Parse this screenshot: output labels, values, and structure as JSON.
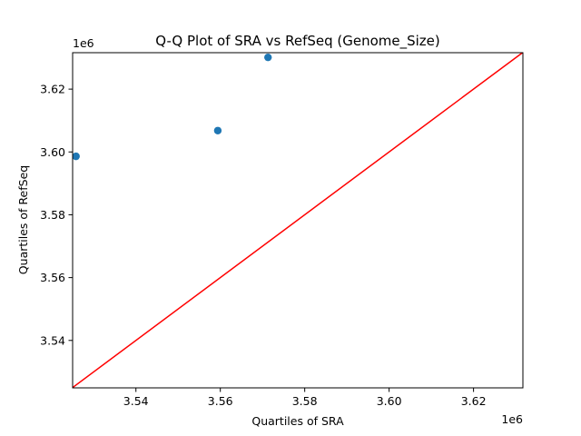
{
  "chart_data": {
    "type": "scatter",
    "title": "Q-Q Plot of SRA vs RefSeq (Genome_Size)",
    "xlabel": "Quartiles of SRA",
    "ylabel": "Quartiles of RefSeq",
    "x_offset_label": "1e6",
    "y_offset_label": "1e6",
    "xlim": [
      3525000,
      3631700
    ],
    "ylim": [
      3524900,
      3631600
    ],
    "x_ticks": [
      3540000,
      3560000,
      3580000,
      3600000,
      3620000
    ],
    "x_tick_labels": [
      "3.54",
      "3.56",
      "3.58",
      "3.60",
      "3.62"
    ],
    "y_ticks": [
      3540000,
      3560000,
      3580000,
      3600000,
      3620000
    ],
    "y_tick_labels": [
      "3.54",
      "3.56",
      "3.58",
      "3.60",
      "3.62"
    ],
    "grid": false,
    "series": [
      {
        "x": [
          3525800,
          3559400,
          3571300
        ],
        "y": [
          3598600,
          3606800,
          3630100
        ],
        "color": "#1f77b4"
      }
    ],
    "reference_line": {
      "x": [
        3525000,
        3631700
      ],
      "y": [
        3525000,
        3631700
      ],
      "color": "#ff0000"
    }
  }
}
